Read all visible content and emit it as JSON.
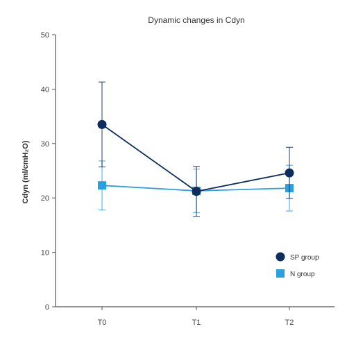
{
  "chart_data": {
    "type": "line",
    "title": "Dynamic changes in Cdyn",
    "xlabel": "",
    "ylabel": "Cdyn (ml/cmH₂O)",
    "categories": [
      "T0",
      "T1",
      "T2"
    ],
    "ylim": [
      0,
      50
    ],
    "yticks": [
      0,
      10,
      20,
      30,
      40,
      50
    ],
    "grid": false,
    "legend_position": "bottom-right",
    "series": [
      {
        "name": "SP group",
        "color": "#0d2d5e",
        "marker": "circle",
        "values": [
          33.5,
          21.2,
          24.6
        ],
        "error": [
          7.8,
          4.6,
          4.7
        ]
      },
      {
        "name": "N group",
        "color": "#2aa0e0",
        "marker": "square",
        "values": [
          22.3,
          21.3,
          21.8
        ],
        "error": [
          4.5,
          4.0,
          4.2
        ]
      }
    ]
  }
}
